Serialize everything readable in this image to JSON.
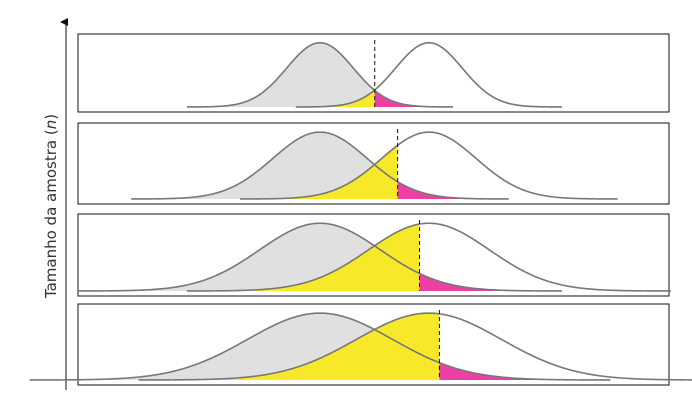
{
  "axis": {
    "label_prefix": "Tamanho da amostra (",
    "label_var": "n",
    "label_suffix": ")"
  },
  "colors": {
    "null_fill": "#e0e0e0",
    "beta_fill": "#f7e92a",
    "alpha_fill": "#ee3fa4",
    "curve_stroke": "#777777"
  },
  "panels": [
    {
      "level": 1,
      "sigma": 0.55
    },
    {
      "level": 2,
      "sigma": 0.78
    },
    {
      "level": 3,
      "sigma": 1.0
    },
    {
      "level": 4,
      "sigma": 1.2
    }
  ],
  "null_mean": 0,
  "alt_mean": 1.8,
  "alpha": 0.05
}
